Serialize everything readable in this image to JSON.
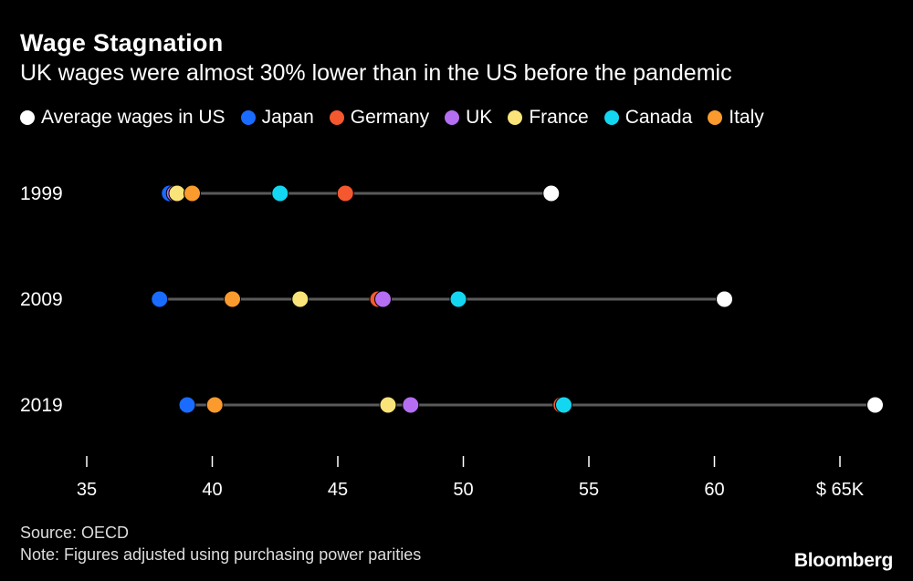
{
  "header": {
    "title": "Wage Stagnation",
    "subtitle": "UK wages were almost 30% lower than in the US before the pandemic"
  },
  "footer": {
    "source": "Source: OECD",
    "note": "Note: Figures adjusted using purchasing power parities",
    "brand": "Bloomberg"
  },
  "chart_data": {
    "type": "dot-plot",
    "title": "Wage Stagnation",
    "subtitle": "UK wages were almost 30% lower than in the US before the pandemic",
    "xlim": [
      35,
      66
    ],
    "ticks": [
      35,
      40,
      45,
      50,
      55,
      60,
      65
    ],
    "tick_labels": [
      "35",
      "40",
      "45",
      "50",
      "55",
      "60",
      "$ 65K"
    ],
    "categories": [
      "1999",
      "2009",
      "2019"
    ],
    "legend_position": "top-left",
    "series": [
      {
        "name": "Average wages in US",
        "color": "#ffffff",
        "values": [
          53.5,
          60.4,
          66.4
        ]
      },
      {
        "name": "Japan",
        "color": "#1a6bff",
        "values": [
          38.3,
          37.9,
          39.0
        ]
      },
      {
        "name": "Germany",
        "color": "#f5582f",
        "values": [
          45.3,
          46.6,
          53.9
        ]
      },
      {
        "name": "UK",
        "color": "#b56ef2",
        "values": [
          38.5,
          46.8,
          47.9
        ]
      },
      {
        "name": "France",
        "color": "#fae479",
        "values": [
          38.6,
          43.5,
          47.0
        ]
      },
      {
        "name": "Canada",
        "color": "#13d7f0",
        "values": [
          42.7,
          49.8,
          54.0
        ]
      },
      {
        "name": "Italy",
        "color": "#fb9b2e",
        "values": [
          39.2,
          40.8,
          40.1
        ]
      }
    ]
  }
}
